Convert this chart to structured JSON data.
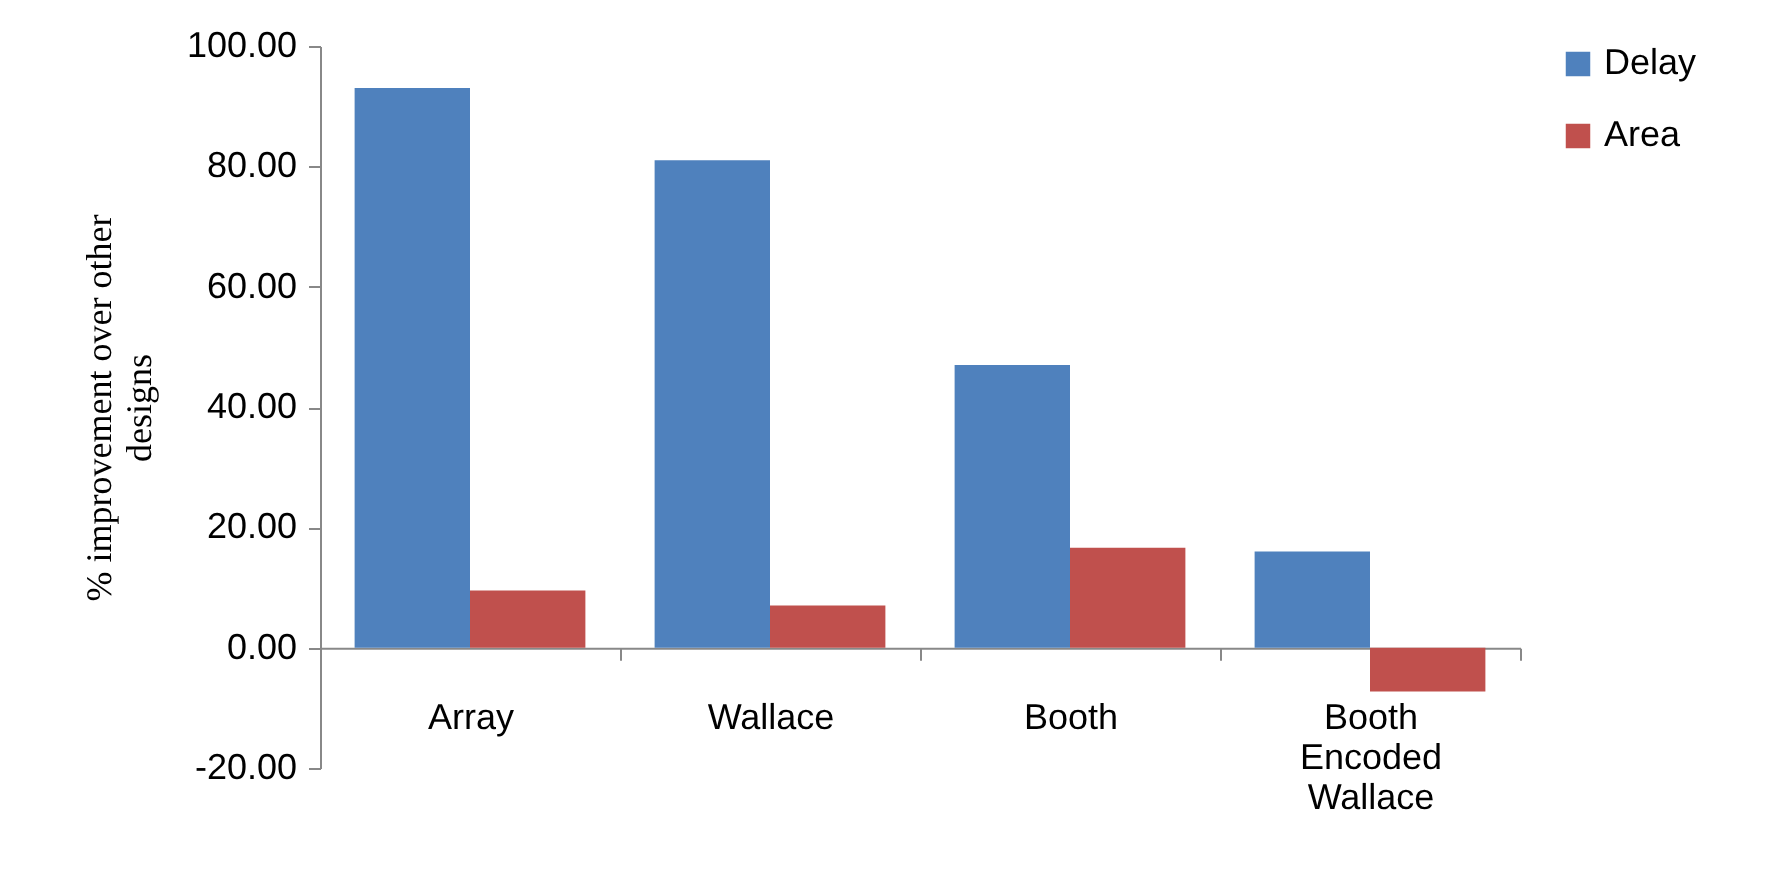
{
  "chart_data": {
    "type": "bar",
    "ylabel": "% improvement over other designs",
    "categories": [
      "Array",
      "Wallace",
      "Booth",
      "Booth Encoded Wallace"
    ],
    "series": [
      {
        "name": "Delay",
        "color": "#4f81bd",
        "values": [
          93,
          81,
          47,
          16
        ]
      },
      {
        "name": "Area",
        "color": "#c0504d",
        "values": [
          9.5,
          7,
          16.6,
          -7.3
        ]
      }
    ],
    "ylim": [
      -20,
      100
    ],
    "yticks": [
      {
        "value": -20,
        "label": "-20.00"
      },
      {
        "value": 0,
        "label": "0.00"
      },
      {
        "value": 20,
        "label": "20.00"
      },
      {
        "value": 40,
        "label": "40.00"
      },
      {
        "value": 60,
        "label": "60.00"
      },
      {
        "value": 80,
        "label": "80.00"
      },
      {
        "value": 100,
        "label": "100.00"
      }
    ],
    "legend": "right",
    "grid": false
  }
}
